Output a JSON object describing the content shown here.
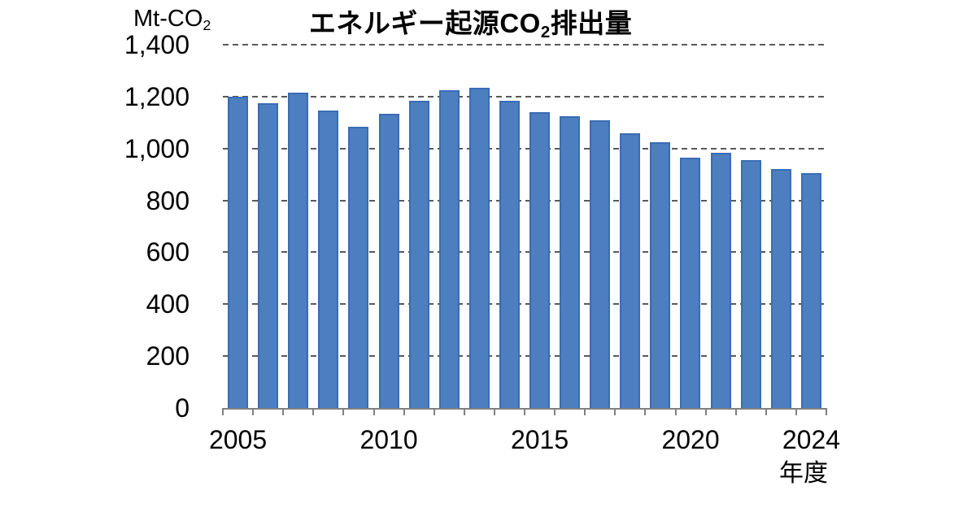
{
  "chart_data": {
    "type": "bar",
    "title": {
      "prefix": "エネルギー起源CO",
      "sub": "2",
      "suffix": "排出量"
    },
    "unit_label": {
      "prefix": "Mt-CO",
      "sub": "2"
    },
    "xlabel": "年度",
    "categories": [
      "2005",
      "2006",
      "2007",
      "2008",
      "2009",
      "2010",
      "2011",
      "2012",
      "2013",
      "2014",
      "2015",
      "2016",
      "2017",
      "2018",
      "2019",
      "2020",
      "2021",
      "2022",
      "2023",
      "2024"
    ],
    "values": [
      1200,
      1175,
      1215,
      1145,
      1085,
      1135,
      1185,
      1225,
      1235,
      1185,
      1140,
      1125,
      1110,
      1060,
      1025,
      965,
      985,
      955,
      920,
      905
    ],
    "ylim": [
      0,
      1400
    ],
    "y_tick_step": 200,
    "y_tick_labels": [
      "1,400",
      "1,200",
      "1,000",
      "800",
      "600",
      "400",
      "200",
      "0"
    ],
    "x_ticks": [
      {
        "label": "2005",
        "slot": 0
      },
      {
        "label": "2010",
        "slot": 5
      },
      {
        "label": "2015",
        "slot": 10
      },
      {
        "label": "2020",
        "slot": 15
      },
      {
        "label": "2024",
        "slot": 19
      }
    ],
    "grid": "horizontal-dashed",
    "legend": "none",
    "colors": {
      "bar_fill": "#4d7ebf",
      "bar_border": "#3a6cb5",
      "gridline": "#595959",
      "axis": "#808080",
      "text": "#000000",
      "background": "#ffffff"
    }
  }
}
